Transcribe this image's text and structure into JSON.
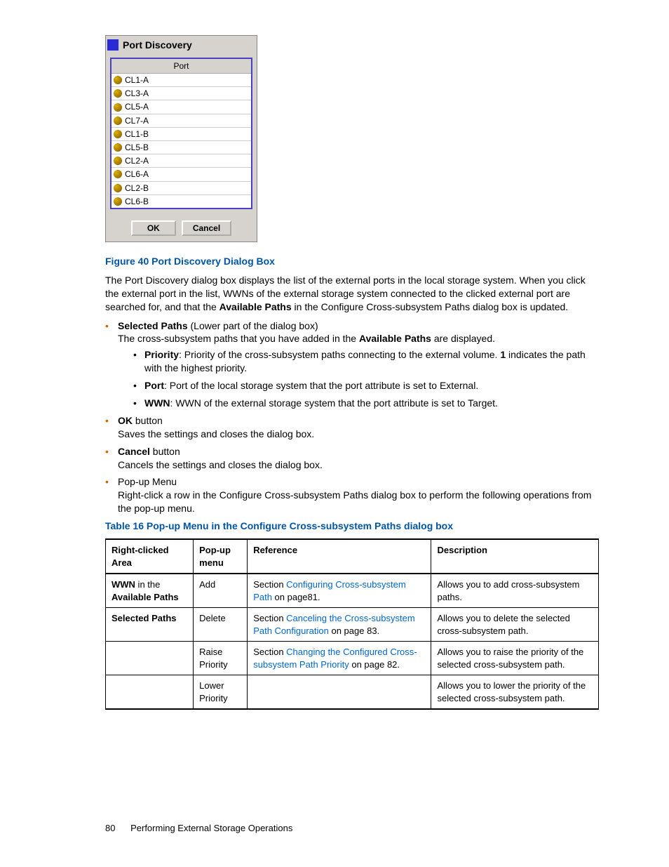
{
  "dialog": {
    "title": "Port Discovery",
    "column_header": "Port",
    "ports": [
      "CL1-A",
      "CL3-A",
      "CL5-A",
      "CL7-A",
      "CL1-B",
      "CL5-B",
      "CL2-A",
      "CL6-A",
      "CL2-B",
      "CL6-B"
    ],
    "ok_label": "OK",
    "cancel_label": "Cancel"
  },
  "figure_caption": "Figure 40 Port Discovery Dialog Box",
  "intro_para": "The Port Discovery dialog box displays the list of the external ports in the local storage system. When you click the external port in the list, WWNs of the external storage system connected to the clicked external port are searched for, and that the ",
  "intro_bold": "Available Paths",
  "intro_tail": " in the Configure Cross-subsystem Paths dialog box is updated.",
  "selpaths": {
    "lead_bold": "Selected Paths",
    "lead_rest": " (Lower part of the dialog box)",
    "line2a": "The cross-subsystem paths that you have added in the ",
    "line2b": "Available Paths",
    "line2c": " are displayed.",
    "priority_bold": "Priority",
    "priority_text": ": Priority of the cross-subsystem paths connecting to the external volume. ",
    "priority_bold2": "1",
    "priority_tail": " indicates the path with the highest priority.",
    "port_bold": "Port",
    "port_text": ": Port of the local storage system that the port attribute is set to External.",
    "wwn_bold": "WWN",
    "wwn_text": ": WWN of the external storage system that the port attribute is set to Target."
  },
  "ok_item": {
    "bold": "OK",
    "rest": " button",
    "line": "Saves the settings and closes the dialog box."
  },
  "cancel_item": {
    "bold": "Cancel",
    "rest": " button",
    "line": "Cancels the settings and closes the dialog box."
  },
  "popup_item": {
    "lead": "Pop-up Menu",
    "line": "Right-click a row in the Configure Cross-subsystem Paths dialog box to perform the following operations from the pop-up menu."
  },
  "table_caption": "Table 16 Pop-up Menu in the Configure Cross-subsystem Paths dialog box",
  "table": {
    "headers": [
      "Right-clicked Area",
      "Pop-up menu",
      "Reference",
      "Description"
    ],
    "rows": [
      {
        "area_bold1": "WWN",
        "area_mid": " in the ",
        "area_bold2": "Available Paths",
        "menu": "Add",
        "ref_pre": "Section ",
        "ref_link": "Configuring Cross-subsystem Path",
        "ref_post": " on page81.",
        "desc": "Allows you to add cross-subsystem paths."
      },
      {
        "area_bold1": "Selected Paths",
        "area_mid": "",
        "area_bold2": "",
        "menu": "Delete",
        "ref_pre": "Section ",
        "ref_link": "Canceling the Cross-subsystem Path Configuration",
        "ref_post": " on page 83.",
        "desc": "Allows you to delete the selected cross-subsystem path."
      },
      {
        "area_bold1": "",
        "area_mid": "",
        "area_bold2": "",
        "menu": "Raise Priority",
        "ref_pre": "Section ",
        "ref_link": "Changing the Configured Cross-subsystem Path Priority",
        "ref_post": " on page 82.",
        "desc": "Allows you to raise the priority of the selected cross-subsystem path."
      },
      {
        "area_bold1": "",
        "area_mid": "",
        "area_bold2": "",
        "menu": "Lower Priority",
        "ref_pre": "",
        "ref_link": "",
        "ref_post": "",
        "desc": "Allows you to lower the priority of the selected cross-subsystem path."
      }
    ]
  },
  "footer": {
    "page_num": "80",
    "section": "Performing External Storage Operations"
  }
}
